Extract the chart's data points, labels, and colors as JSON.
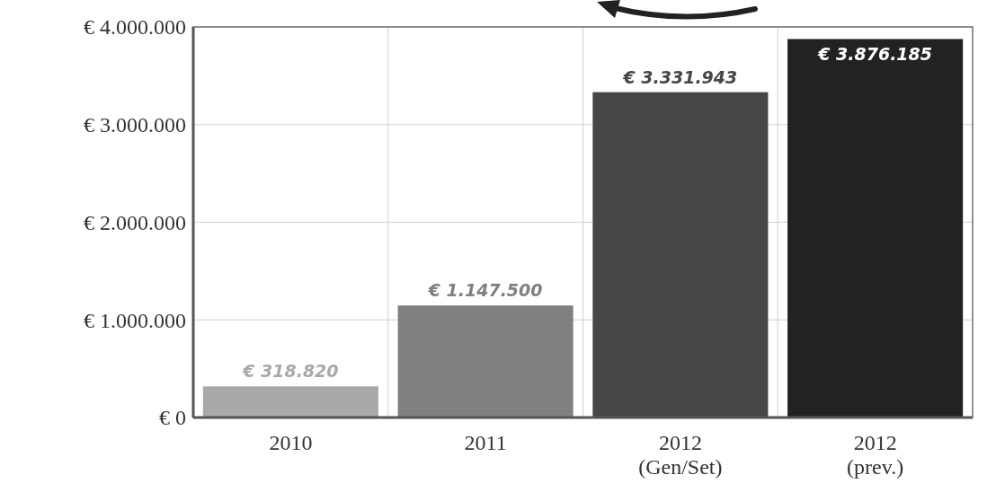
{
  "chart_data": {
    "type": "bar",
    "categories": [
      "2010",
      "2011",
      "2012\n(Gen/Set)",
      "2012\n(prev.)"
    ],
    "values": [
      318820,
      1147500,
      3331943,
      3876185
    ],
    "colors": [
      "#a9a9a9",
      "#808080",
      "#464646",
      "#222222"
    ],
    "value_labels": [
      "€ 318.820",
      "€ 1.147.500",
      "€ 3.331.943",
      "€ 3.876.185"
    ],
    "ylim": [
      0,
      4000000
    ],
    "yticks": [
      {
        "value": 0,
        "label": "€ 0"
      },
      {
        "value": 1000000,
        "label": "€ 1.000.000"
      },
      {
        "value": 2000000,
        "label": "€ 2.000.000"
      },
      {
        "value": 3000000,
        "label": "€ 3.000.000"
      },
      {
        "value": 4000000,
        "label": "€ 4.000.000"
      }
    ],
    "grid": true
  }
}
